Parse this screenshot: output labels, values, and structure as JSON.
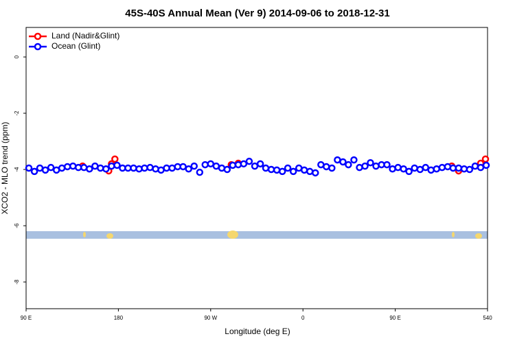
{
  "chart_data": {
    "type": "scatter",
    "title": "45S-40S Annual Mean (Ver 9)   2014-09-06 to 2018-12-31",
    "x_label": "Longitude (deg E)",
    "y_label": "XCO2 - MLO trend (ppm)",
    "xlim": [
      90,
      540
    ],
    "xticks": [
      {
        "value": 90,
        "label": "90 E"
      },
      180,
      {
        "value": 270,
        "label": "90 W"
      },
      {
        "value": 360,
        "label": "0"
      },
      {
        "value": 450,
        "label": "90 E"
      },
      540
    ],
    "ylim": [
      -8.95,
      1.05
    ],
    "yticks": [
      0,
      -2,
      -4,
      -6,
      -8
    ],
    "legend": "top-left",
    "series": [
      {
        "name": "Land (Nadir&Glint)",
        "color": "#ff0000",
        "x": [
          145.1,
          170.6,
          173.3,
          176.6,
          290.1,
          296.9,
          505.1,
          511.8,
          533.3,
          538.0
        ],
        "values": [
          -3.88,
          -4.05,
          -3.8,
          -3.63,
          -3.83,
          -3.78,
          -3.88,
          -4.05,
          -3.78,
          -3.63
        ]
      },
      {
        "name": "Ocean (Glint)",
        "color": "#0000ff",
        "x": [
          92.7,
          98.1,
          103.4,
          108.8,
          114.2,
          119.6,
          124.9,
          130.3,
          135.7,
          141.0,
          146.4,
          151.8,
          157.2,
          162.5,
          167.9,
          173.3,
          178.7,
          184.0,
          189.4,
          194.8,
          200.2,
          205.5,
          210.9,
          216.3,
          221.6,
          227.0,
          232.4,
          237.8,
          243.1,
          248.5,
          253.9,
          259.3,
          264.6,
          270.0,
          275.4,
          280.8,
          286.1,
          291.5,
          296.9,
          302.2,
          307.6,
          313.0,
          318.4,
          323.7,
          329.1,
          334.5,
          339.9,
          345.2,
          350.6,
          356.0,
          361.3,
          366.7,
          372.1,
          377.5,
          382.8,
          388.2,
          393.6,
          399.0,
          404.3,
          409.7,
          415.1,
          420.5,
          425.8,
          431.2,
          436.6,
          441.9,
          447.3,
          452.7,
          458.1,
          463.4,
          468.8,
          474.2,
          479.6,
          484.9,
          490.3,
          495.7,
          501.1,
          506.4,
          511.8,
          517.2,
          522.5,
          527.9,
          533.3,
          538.7
        ],
        "values": [
          -3.95,
          -4.07,
          -3.95,
          -4.02,
          -3.93,
          -4.02,
          -3.95,
          -3.9,
          -3.88,
          -3.93,
          -3.93,
          -3.98,
          -3.88,
          -3.95,
          -3.98,
          -3.88,
          -3.85,
          -3.95,
          -3.95,
          -3.95,
          -3.98,
          -3.95,
          -3.93,
          -3.98,
          -4.02,
          -3.95,
          -3.95,
          -3.9,
          -3.9,
          -3.98,
          -3.88,
          -4.1,
          -3.83,
          -3.8,
          -3.88,
          -3.95,
          -4.0,
          -3.85,
          -3.83,
          -3.8,
          -3.71,
          -3.88,
          -3.8,
          -3.95,
          -4.0,
          -4.02,
          -4.07,
          -3.95,
          -4.07,
          -3.95,
          -4.02,
          -4.07,
          -4.12,
          -3.83,
          -3.9,
          -3.95,
          -3.66,
          -3.73,
          -3.83,
          -3.66,
          -3.93,
          -3.88,
          -3.76,
          -3.88,
          -3.83,
          -3.83,
          -3.98,
          -3.93,
          -3.98,
          -4.07,
          -3.95,
          -4.0,
          -3.93,
          -4.02,
          -3.98,
          -3.93,
          -3.9,
          -3.95,
          -3.95,
          -3.98,
          -4.0,
          -3.88,
          -3.93,
          -3.85
        ]
      }
    ]
  }
}
